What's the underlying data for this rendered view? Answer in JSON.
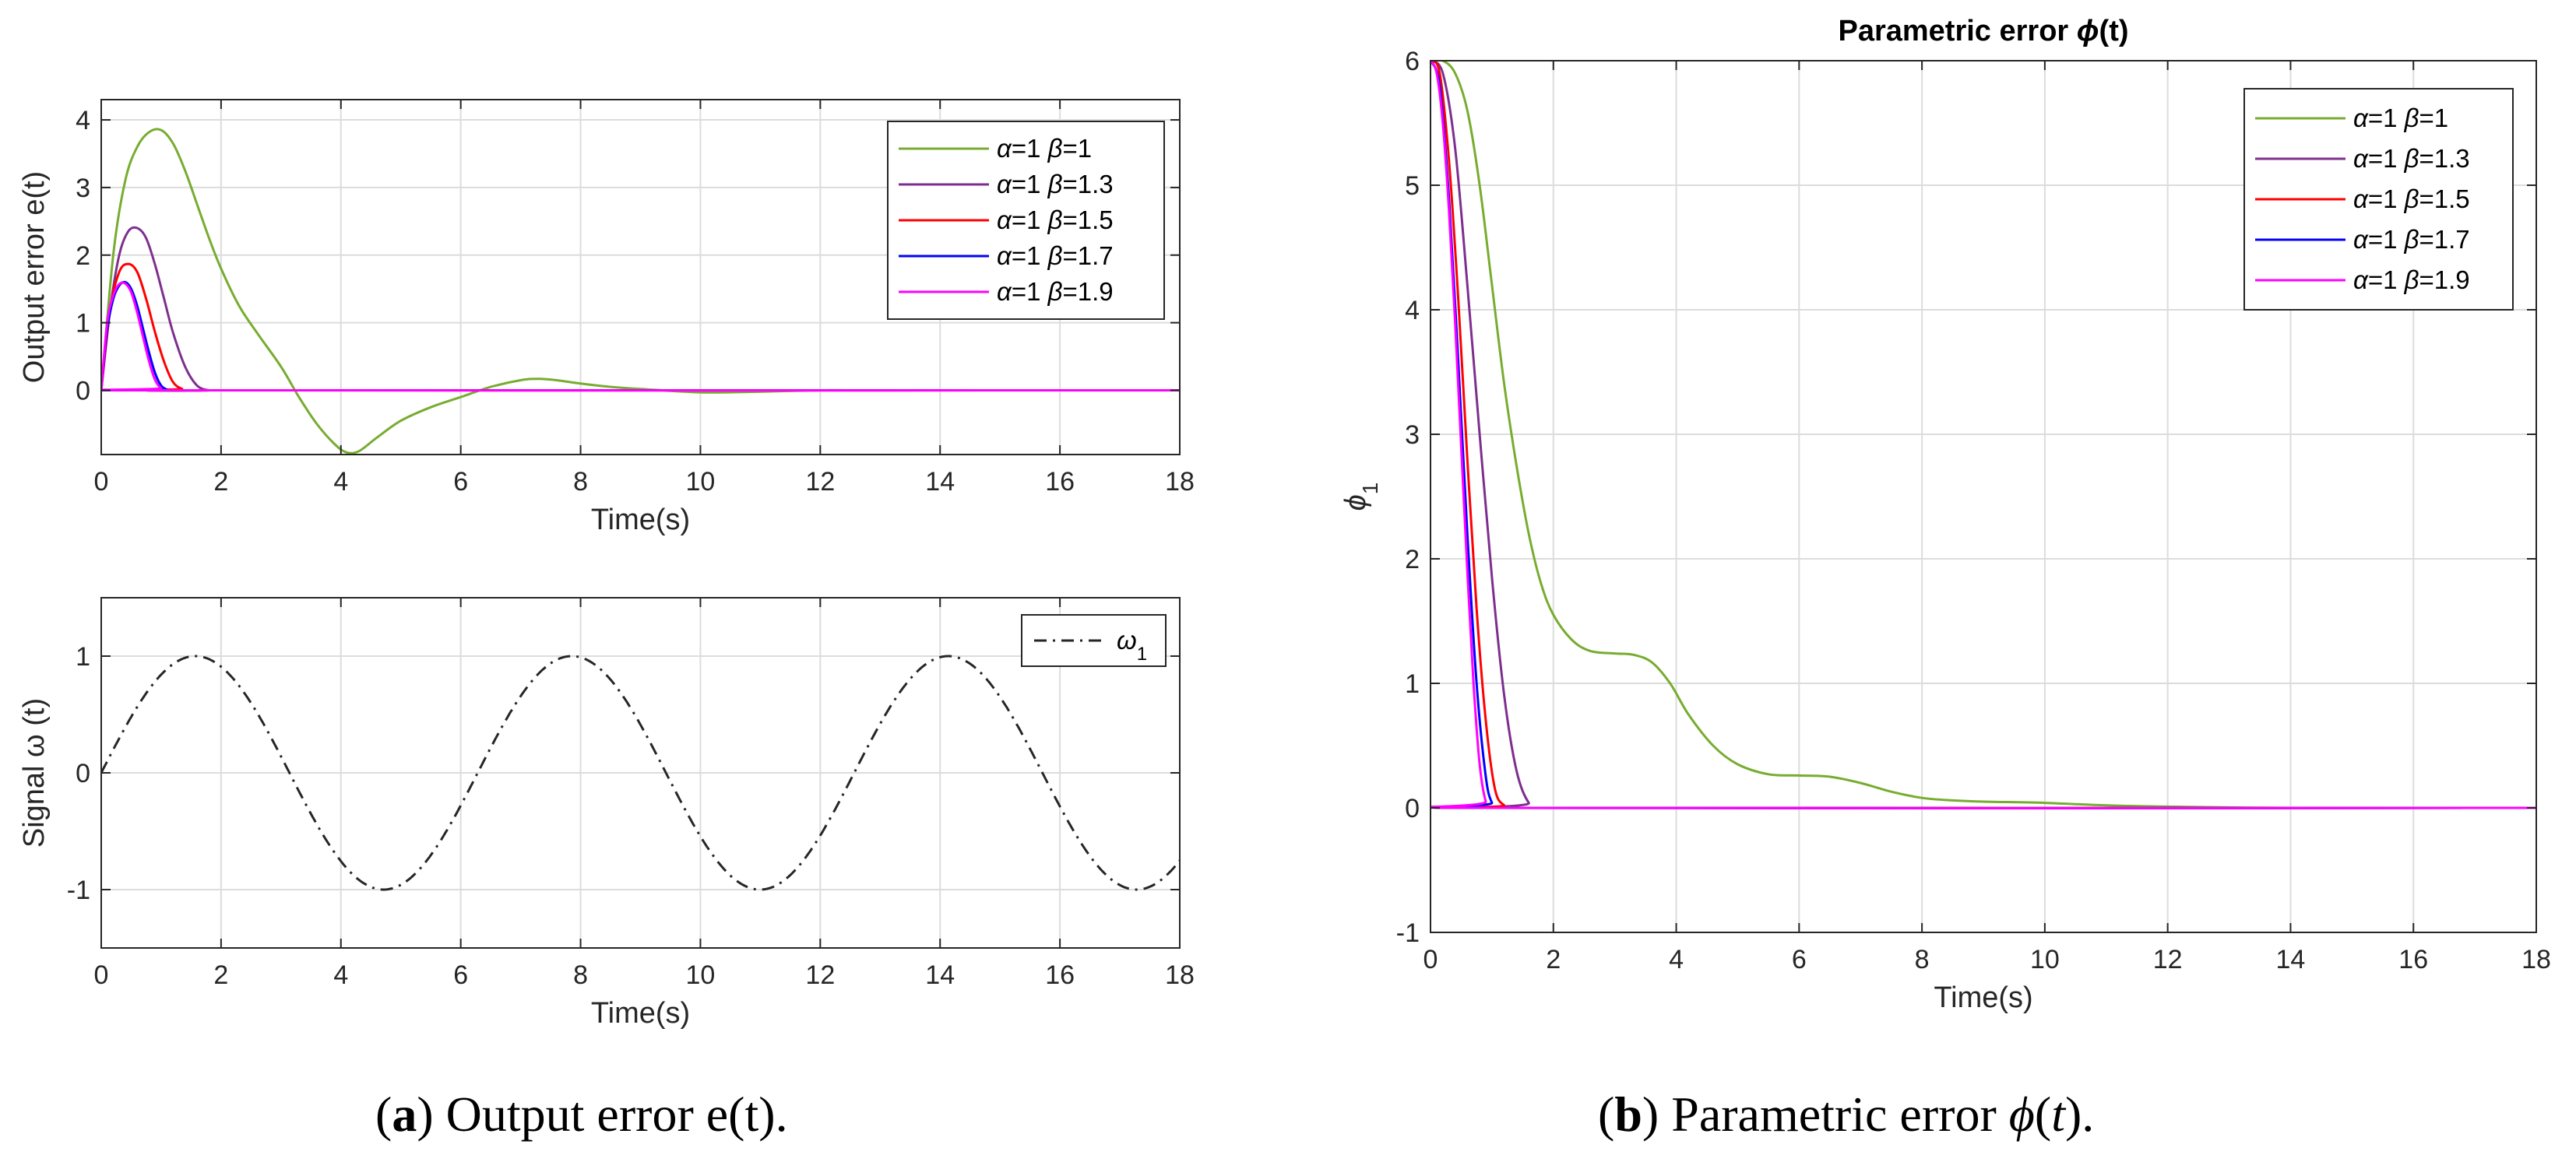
{
  "chart_data": [
    {
      "type": "line",
      "panel": "a-top",
      "ylabel": "Output error e(t)",
      "xlabel": "Time(s)",
      "xlim": [
        0,
        18
      ],
      "ylim": [
        -0.95,
        4.3
      ],
      "xticks": [
        0,
        2,
        4,
        6,
        8,
        10,
        12,
        14,
        16,
        18
      ],
      "yticks": [
        0,
        1,
        2,
        3,
        4
      ],
      "grid": true,
      "legend_position": "top-right",
      "series": [
        {
          "name": "α=1 β=1",
          "alpha": "1",
          "beta": "1",
          "color": "#77AC30",
          "x": [
            0,
            0.2,
            0.4,
            0.6,
            0.8,
            1.0,
            1.2,
            1.4,
            1.6,
            1.8,
            2.0,
            2.3,
            2.6,
            3.0,
            3.3,
            3.6,
            3.9,
            4.1,
            4.3,
            4.6,
            5.0,
            5.5,
            6.0,
            6.5,
            7.0,
            7.3,
            7.6,
            8.0,
            8.5,
            9.0,
            10.0,
            11.0,
            12.0,
            13.0,
            18.0
          ],
          "y": [
            0,
            2.0,
            3.1,
            3.6,
            3.82,
            3.85,
            3.65,
            3.25,
            2.75,
            2.25,
            1.8,
            1.25,
            0.85,
            0.35,
            -0.1,
            -0.5,
            -0.8,
            -0.92,
            -0.9,
            -0.7,
            -0.45,
            -0.25,
            -0.1,
            0.05,
            0.15,
            0.17,
            0.15,
            0.1,
            0.05,
            0.02,
            -0.03,
            -0.02,
            0.0,
            0.0,
            0.0
          ]
        },
        {
          "name": "α=1 β=1.3",
          "alpha": "1",
          "beta": "1.3",
          "color": "#7E2F8E",
          "x": [
            0,
            0.15,
            0.3,
            0.45,
            0.6,
            0.75,
            0.9,
            1.05,
            1.2,
            1.4,
            1.6,
            1.8,
            2.0,
            18.0
          ],
          "y": [
            0,
            1.2,
            2.0,
            2.35,
            2.4,
            2.25,
            1.85,
            1.35,
            0.85,
            0.35,
            0.07,
            0.0,
            0.0,
            0.0
          ]
        },
        {
          "name": "α=1 β=1.5",
          "alpha": "1",
          "beta": "1.5",
          "color": "#FF0000",
          "x": [
            0,
            0.15,
            0.3,
            0.45,
            0.6,
            0.75,
            0.9,
            1.05,
            1.2,
            1.35,
            1.5,
            18.0
          ],
          "y": [
            0,
            1.2,
            1.75,
            1.87,
            1.75,
            1.35,
            0.85,
            0.42,
            0.12,
            0.02,
            0.0,
            0.0
          ]
        },
        {
          "name": "α=1 β=1.7",
          "alpha": "1",
          "beta": "1.7",
          "color": "#0000FF",
          "x": [
            0,
            0.1,
            0.2,
            0.3,
            0.4,
            0.5,
            0.6,
            0.7,
            0.8,
            0.9,
            1.0,
            1.1,
            1.2,
            18.0
          ],
          "y": [
            0,
            0.9,
            1.35,
            1.55,
            1.6,
            1.5,
            1.25,
            0.9,
            0.55,
            0.25,
            0.07,
            0.01,
            0.0,
            0.0
          ]
        },
        {
          "name": "α=1 β=1.9",
          "alpha": "1",
          "beta": "1.9",
          "color": "#FF00FF",
          "x": [
            0,
            0.1,
            0.2,
            0.3,
            0.4,
            0.5,
            0.6,
            0.7,
            0.8,
            0.9,
            1.0,
            1.1,
            18.0
          ],
          "y": [
            0,
            1.0,
            1.4,
            1.57,
            1.58,
            1.45,
            1.15,
            0.78,
            0.42,
            0.15,
            0.03,
            0.0,
            0.0
          ]
        }
      ]
    },
    {
      "type": "line",
      "panel": "a-bottom",
      "ylabel": "Signal  ω (t)",
      "xlabel": "Time(s)",
      "xlim": [
        0,
        18
      ],
      "ylim": [
        -1.5,
        1.5
      ],
      "xticks": [
        0,
        2,
        4,
        6,
        8,
        10,
        12,
        14,
        16,
        18
      ],
      "yticks": [
        -1,
        0,
        1
      ],
      "grid": true,
      "legend_position": "top-right",
      "series": [
        {
          "name": "ω",
          "subscript": "1",
          "color": "#262626",
          "dash": "dashdot",
          "function": "sin(t)"
        }
      ]
    },
    {
      "type": "line",
      "panel": "b",
      "title": "Parametric error ϕ(t)",
      "title_prefix": "Parametric error ",
      "title_symbol": "ϕ",
      "title_suffix": "(t)",
      "ylabel": "ϕ",
      "ylabel_subscript": "1",
      "xlabel": "Time(s)",
      "xlim": [
        0,
        18
      ],
      "ylim": [
        -1,
        6
      ],
      "xticks": [
        0,
        2,
        4,
        6,
        8,
        10,
        12,
        14,
        16,
        18
      ],
      "yticks": [
        -1,
        0,
        1,
        2,
        3,
        4,
        5,
        6
      ],
      "grid": true,
      "legend_position": "top-right",
      "series": [
        {
          "name": "α=1 β=1",
          "alpha": "1",
          "beta": "1",
          "color": "#77AC30",
          "x": [
            0,
            0.2,
            0.4,
            0.6,
            0.8,
            1.0,
            1.2,
            1.4,
            1.6,
            1.8,
            2.0,
            2.3,
            2.6,
            3.0,
            3.3,
            3.6,
            3.9,
            4.2,
            4.6,
            5.0,
            5.5,
            6.0,
            6.5,
            7.0,
            7.5,
            8.0,
            8.5,
            9.0,
            10.0,
            11.0,
            12.0,
            14.0,
            18.0
          ],
          "y": [
            6.0,
            6.0,
            5.9,
            5.6,
            5.0,
            4.2,
            3.4,
            2.75,
            2.2,
            1.8,
            1.55,
            1.35,
            1.26,
            1.24,
            1.23,
            1.17,
            1.0,
            0.75,
            0.5,
            0.35,
            0.27,
            0.26,
            0.25,
            0.2,
            0.13,
            0.08,
            0.06,
            0.05,
            0.04,
            0.02,
            0.01,
            0.0,
            0.0
          ]
        },
        {
          "name": "α=1 β=1.3",
          "alpha": "1",
          "beta": "1.3",
          "color": "#7E2F8E",
          "x": [
            0,
            0.2,
            0.4,
            0.6,
            0.8,
            1.0,
            1.2,
            1.4,
            1.6,
            1.8,
            18.0
          ],
          "y": [
            6.0,
            5.9,
            5.3,
            4.2,
            3.0,
            1.85,
            0.9,
            0.3,
            0.04,
            0.0,
            0.0
          ]
        },
        {
          "name": "α=1 β=1.5",
          "alpha": "1",
          "beta": "1.5",
          "color": "#FF0000",
          "x": [
            0,
            0.15,
            0.3,
            0.45,
            0.6,
            0.75,
            0.9,
            1.05,
            1.2,
            1.35,
            18.0
          ],
          "y": [
            6.0,
            5.9,
            5.2,
            4.1,
            2.8,
            1.6,
            0.7,
            0.15,
            0.02,
            0.0,
            0.0
          ]
        },
        {
          "name": "α=1 β=1.7",
          "alpha": "1",
          "beta": "1.7",
          "color": "#0000FF",
          "x": [
            0,
            0.15,
            0.3,
            0.45,
            0.6,
            0.75,
            0.9,
            1.0,
            1.1,
            18.0
          ],
          "y": [
            6.0,
            5.8,
            4.9,
            3.6,
            2.2,
            1.0,
            0.25,
            0.04,
            0.0,
            0.0
          ]
        },
        {
          "name": "α=1 β=1.9",
          "alpha": "1",
          "beta": "1.9",
          "color": "#FF00FF",
          "x": [
            0,
            0.1,
            0.2,
            0.3,
            0.4,
            0.5,
            0.6,
            0.7,
            0.8,
            0.9,
            1.0,
            18.0
          ],
          "y": [
            6.0,
            5.9,
            5.5,
            4.8,
            3.9,
            2.9,
            1.9,
            1.0,
            0.35,
            0.05,
            0.0,
            0.0
          ]
        }
      ]
    }
  ],
  "captions": {
    "a": {
      "label": "(a)",
      "label_letter": "a",
      "text": " Output error e(t)."
    },
    "b": {
      "label": "(b)",
      "label_letter": "b",
      "text_prefix": " Parametric error ",
      "symbol": "ϕ",
      "suffix_open": "(",
      "t": "t",
      "suffix_close": ")."
    }
  }
}
